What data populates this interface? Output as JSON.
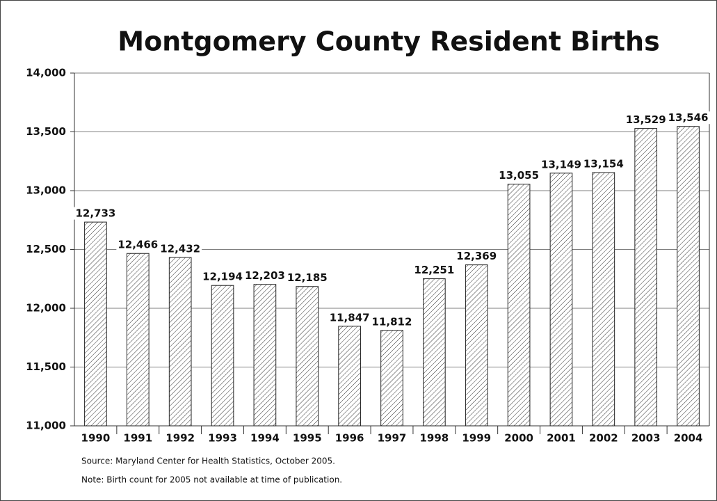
{
  "chart_data": {
    "type": "bar",
    "title": "Montgomery County Resident Births",
    "categories": [
      "1990",
      "1991",
      "1992",
      "1993",
      "1994",
      "1995",
      "1996",
      "1997",
      "1998",
      "1999",
      "2000",
      "2001",
      "2002",
      "2003",
      "2004"
    ],
    "values": [
      12733,
      12466,
      12432,
      12194,
      12203,
      12185,
      11847,
      11812,
      12251,
      12369,
      13055,
      13149,
      13154,
      13529,
      13546
    ],
    "value_labels": [
      "12,733",
      "12,466",
      "12,432",
      "12,194",
      "12,203",
      "12,185",
      "11,847",
      "11,812",
      "12,251",
      "12,369",
      "13,055",
      "13,149",
      "13,154",
      "13,529",
      "13,546"
    ],
    "ylim": [
      11000,
      14000
    ],
    "yticks": [
      {
        "value": 11000,
        "label": "11,000"
      },
      {
        "value": 11500,
        "label": "11,500"
      },
      {
        "value": 12000,
        "label": "12,000"
      },
      {
        "value": 12500,
        "label": "12,500"
      },
      {
        "value": 13000,
        "label": "13,000"
      },
      {
        "value": 13500,
        "label": "13,500"
      },
      {
        "value": 14000,
        "label": "14,000"
      }
    ],
    "grid": true,
    "color": "#222222",
    "source": "Source: Maryland Center for Health Statistics, October 2005.",
    "note": "Note: Birth count for 2005 not available at time of publication."
  }
}
